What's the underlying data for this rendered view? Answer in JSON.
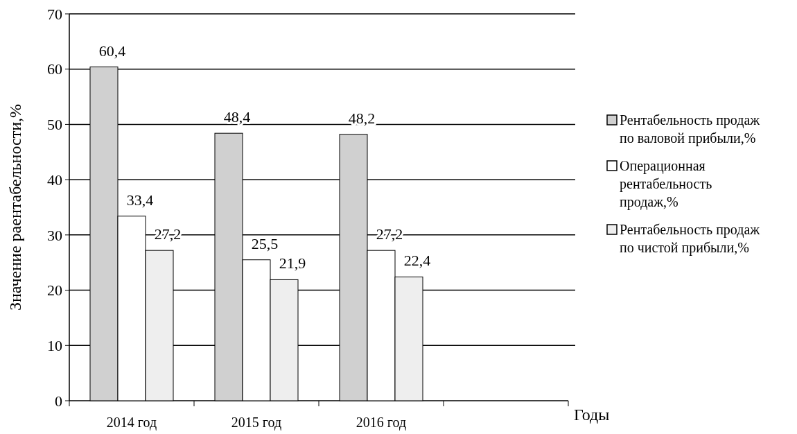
{
  "chart_data": {
    "type": "bar",
    "categories": [
      "2014 год",
      "2015 год",
      "2016 год",
      null
    ],
    "series": [
      {
        "name": "Рентабельность продаж по валовой прибыли,%",
        "color": "#d0d0d0",
        "values": [
          60.4,
          48.4,
          48.2,
          null
        ],
        "value_labels": [
          "60,4",
          "48,4",
          "48,2",
          null
        ]
      },
      {
        "name": "Операционная рентабельность продаж,%",
        "color": "#ffffff",
        "values": [
          33.4,
          25.5,
          27.2,
          null
        ],
        "value_labels": [
          "33,4",
          "25,5",
          "27,2",
          null
        ]
      },
      {
        "name": "Рентабельность продаж по чистой прибыли,%",
        "color": "#eeeeee",
        "values": [
          27.2,
          21.9,
          22.4,
          null
        ],
        "value_labels": [
          "27,2",
          "21,9",
          "22,4",
          null
        ]
      }
    ],
    "xlabel": "Годы",
    "ylabel": "Значение раентабельности,%",
    "ylim": [
      0,
      70
    ],
    "yticks": [
      0,
      10,
      20,
      30,
      40,
      50,
      60,
      70
    ],
    "grid": "y",
    "legend": "right"
  }
}
